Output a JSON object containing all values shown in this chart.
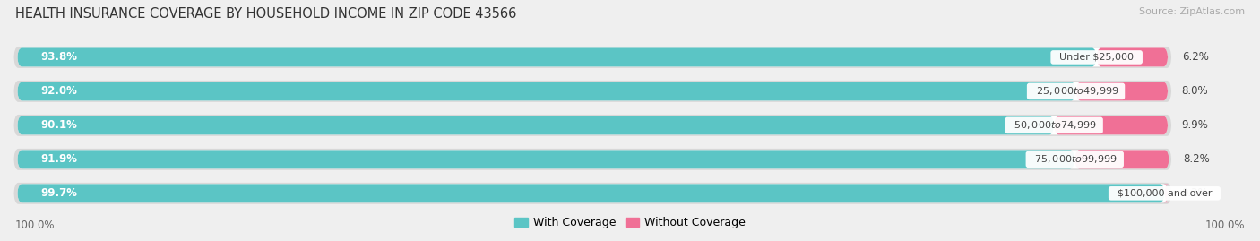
{
  "title": "HEALTH INSURANCE COVERAGE BY HOUSEHOLD INCOME IN ZIP CODE 43566",
  "source": "Source: ZipAtlas.com",
  "categories": [
    "Under $25,000",
    "$25,000 to $49,999",
    "$50,000 to $74,999",
    "$75,000 to $99,999",
    "$100,000 and over"
  ],
  "with_coverage": [
    93.8,
    92.0,
    90.1,
    91.9,
    99.7
  ],
  "without_coverage": [
    6.2,
    8.0,
    9.9,
    8.2,
    0.3
  ],
  "color_coverage": "#5bc5c5",
  "color_no_coverage": "#f07096",
  "color_no_coverage_last": "#f4a0b8",
  "bg_color": "#efefef",
  "bar_bg_color": "#ffffff",
  "bar_shadow_color": "#d8d8d8",
  "title_fontsize": 10.5,
  "source_fontsize": 8,
  "label_fontsize": 8.5,
  "cat_fontsize": 8,
  "legend_fontsize": 9,
  "bottom_left_label": "100.0%",
  "bottom_right_label": "100.0%"
}
